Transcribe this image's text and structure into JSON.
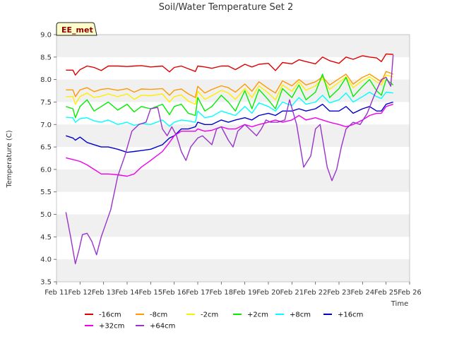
{
  "chart_data": {
    "type": "line",
    "title": "Soil/Water Temperature Set 2",
    "xlabel": "Time",
    "ylabel": "Temperature (C)",
    "badge": "EE_met",
    "ylim": [
      3.5,
      9.0
    ],
    "xlim": [
      11,
      26
    ],
    "grid": "horizontal bands",
    "legend_position": "bottom",
    "yticks": [
      "3.5",
      "4.0",
      "4.5",
      "5.0",
      "5.5",
      "6.0",
      "6.5",
      "7.0",
      "7.5",
      "8.0",
      "8.5",
      "9.0"
    ],
    "ytick_values": [
      3.5,
      4.0,
      4.5,
      5.0,
      5.5,
      6.0,
      6.5,
      7.0,
      7.5,
      8.0,
      8.5,
      9.0
    ],
    "xticks": [
      "Feb 11",
      "Feb 12",
      "Feb 13",
      "Feb 14",
      "Feb 15",
      "Feb 16",
      "Feb 17",
      "Feb 18",
      "Feb 19",
      "Feb 20",
      "Feb 21",
      "Feb 22",
      "Feb 23",
      "Feb 24",
      "Feb 25",
      "Feb 26"
    ],
    "xtick_values": [
      11,
      12,
      13,
      14,
      15,
      16,
      17,
      18,
      19,
      20,
      21,
      22,
      23,
      24,
      25,
      26
    ],
    "series": [
      {
        "name": "-16cm",
        "color": "#e00000",
        "x": [
          11.4,
          11.7,
          11.8,
          12.0,
          12.3,
          12.6,
          12.9,
          13.2,
          13.6,
          14.0,
          14.3,
          14.6,
          15.0,
          15.5,
          15.8,
          16.0,
          16.3,
          16.6,
          16.9,
          17.0,
          17.3,
          17.6,
          18.0,
          18.3,
          18.6,
          19.0,
          19.3,
          19.6,
          20.0,
          20.3,
          20.6,
          21.0,
          21.3,
          21.6,
          22.0,
          22.3,
          22.6,
          23.0,
          23.3,
          23.6,
          24.0,
          24.3,
          24.6,
          24.8,
          25.0,
          25.3
        ],
        "y": [
          8.21,
          8.21,
          8.1,
          8.22,
          8.3,
          8.27,
          8.2,
          8.3,
          8.3,
          8.29,
          8.3,
          8.31,
          8.28,
          8.3,
          8.17,
          8.27,
          8.3,
          8.24,
          8.18,
          8.3,
          8.28,
          8.25,
          8.3,
          8.3,
          8.22,
          8.34,
          8.28,
          8.34,
          8.36,
          8.2,
          8.38,
          8.35,
          8.44,
          8.4,
          8.35,
          8.5,
          8.42,
          8.36,
          8.5,
          8.45,
          8.53,
          8.5,
          8.48,
          8.4,
          8.57,
          8.56
        ]
      },
      {
        "name": "-8cm",
        "color": "#ff9900",
        "x": [
          11.4,
          11.7,
          11.8,
          12.0,
          12.3,
          12.6,
          12.9,
          13.2,
          13.6,
          14.0,
          14.3,
          14.6,
          15.0,
          15.5,
          15.8,
          16.0,
          16.3,
          16.6,
          16.9,
          17.0,
          17.3,
          17.6,
          18.0,
          18.3,
          18.6,
          19.0,
          19.3,
          19.6,
          20.0,
          20.3,
          20.6,
          21.0,
          21.3,
          21.6,
          22.0,
          22.3,
          22.6,
          23.0,
          23.3,
          23.6,
          24.0,
          24.3,
          24.6,
          24.8,
          25.0,
          25.3
        ],
        "y": [
          7.77,
          7.77,
          7.62,
          7.77,
          7.82,
          7.73,
          7.78,
          7.8,
          7.76,
          7.8,
          7.72,
          7.79,
          7.78,
          7.8,
          7.65,
          7.76,
          7.79,
          7.68,
          7.6,
          7.85,
          7.7,
          7.78,
          7.86,
          7.82,
          7.72,
          7.9,
          7.74,
          7.95,
          7.8,
          7.7,
          7.97,
          7.86,
          8.0,
          7.88,
          7.95,
          8.06,
          7.88,
          8.02,
          8.12,
          7.9,
          8.05,
          8.12,
          8.02,
          7.95,
          8.18,
          8.12
        ]
      },
      {
        "name": "-2cm",
        "color": "#ffee00",
        "x": [
          11.4,
          11.7,
          11.8,
          12.0,
          12.3,
          12.6,
          12.9,
          13.2,
          13.6,
          14.0,
          14.3,
          14.6,
          15.0,
          15.5,
          15.8,
          16.0,
          16.3,
          16.6,
          16.9,
          17.0,
          17.3,
          17.6,
          18.0,
          18.3,
          18.6,
          19.0,
          19.3,
          19.6,
          20.0,
          20.3,
          20.6,
          21.0,
          21.3,
          21.6,
          22.0,
          22.3,
          22.6,
          23.0,
          23.3,
          23.6,
          24.0,
          24.3,
          24.6,
          24.8,
          25.0,
          25.3
        ],
        "y": [
          7.62,
          7.62,
          7.45,
          7.62,
          7.7,
          7.6,
          7.63,
          7.68,
          7.62,
          7.68,
          7.56,
          7.65,
          7.64,
          7.68,
          7.5,
          7.62,
          7.66,
          7.52,
          7.45,
          7.74,
          7.56,
          7.64,
          7.76,
          7.7,
          7.56,
          7.8,
          7.6,
          7.86,
          7.7,
          7.55,
          7.88,
          7.74,
          7.95,
          7.76,
          7.86,
          8.02,
          7.78,
          7.94,
          8.06,
          7.82,
          7.98,
          8.06,
          7.95,
          7.88,
          8.1,
          8.06
        ]
      },
      {
        "name": "+2cm",
        "color": "#00ee00",
        "x": [
          11.4,
          11.7,
          11.8,
          12.0,
          12.3,
          12.6,
          12.9,
          13.2,
          13.6,
          14.0,
          14.3,
          14.6,
          15.0,
          15.5,
          15.8,
          16.0,
          16.3,
          16.6,
          16.9,
          17.0,
          17.3,
          17.6,
          18.0,
          18.3,
          18.6,
          19.0,
          19.3,
          19.6,
          20.0,
          20.3,
          20.6,
          21.0,
          21.3,
          21.6,
          22.0,
          22.3,
          22.6,
          23.0,
          23.3,
          23.6,
          24.0,
          24.3,
          24.6,
          24.8,
          25.0,
          25.3
        ],
        "y": [
          7.4,
          7.35,
          7.15,
          7.4,
          7.55,
          7.3,
          7.4,
          7.5,
          7.32,
          7.45,
          7.28,
          7.4,
          7.35,
          7.45,
          7.22,
          7.4,
          7.45,
          7.25,
          7.2,
          7.6,
          7.3,
          7.4,
          7.65,
          7.5,
          7.3,
          7.75,
          7.35,
          7.78,
          7.55,
          7.35,
          7.8,
          7.6,
          7.88,
          7.55,
          7.72,
          8.12,
          7.6,
          7.8,
          8.05,
          7.62,
          7.85,
          8.0,
          7.75,
          7.65,
          8.0,
          7.88
        ]
      },
      {
        "name": "+8cm",
        "color": "#00ffff",
        "x": [
          11.4,
          11.7,
          11.8,
          12.0,
          12.3,
          12.6,
          12.9,
          13.2,
          13.6,
          14.0,
          14.3,
          14.6,
          15.0,
          15.5,
          15.8,
          16.0,
          16.3,
          16.6,
          16.9,
          17.0,
          17.3,
          17.6,
          18.0,
          18.3,
          18.6,
          19.0,
          19.3,
          19.6,
          20.0,
          20.3,
          20.6,
          21.0,
          21.3,
          21.6,
          22.0,
          22.3,
          22.6,
          23.0,
          23.3,
          23.6,
          24.0,
          24.3,
          24.6,
          24.8,
          25.0,
          25.3
        ],
        "y": [
          7.16,
          7.15,
          7.05,
          7.13,
          7.15,
          7.08,
          7.05,
          7.1,
          7.0,
          7.05,
          6.98,
          7.02,
          7.0,
          7.1,
          6.96,
          7.05,
          7.1,
          7.08,
          7.05,
          7.3,
          7.15,
          7.18,
          7.3,
          7.25,
          7.2,
          7.4,
          7.25,
          7.48,
          7.4,
          7.3,
          7.5,
          7.42,
          7.6,
          7.45,
          7.5,
          7.65,
          7.48,
          7.55,
          7.7,
          7.5,
          7.62,
          7.72,
          7.62,
          7.58,
          7.72,
          7.7
        ]
      },
      {
        "name": "+16cm",
        "color": "#0000cc",
        "x": [
          11.4,
          11.7,
          11.8,
          12.0,
          12.3,
          12.6,
          12.9,
          13.2,
          13.6,
          14.0,
          14.3,
          14.6,
          15.0,
          15.5,
          15.8,
          16.0,
          16.3,
          16.6,
          16.9,
          17.0,
          17.3,
          17.6,
          18.0,
          18.3,
          18.6,
          19.0,
          19.3,
          19.6,
          20.0,
          20.3,
          20.6,
          21.0,
          21.3,
          21.6,
          22.0,
          22.3,
          22.6,
          23.0,
          23.3,
          23.6,
          24.0,
          24.3,
          24.6,
          24.8,
          25.0,
          25.3
        ],
        "y": [
          6.75,
          6.7,
          6.65,
          6.72,
          6.6,
          6.55,
          6.5,
          6.5,
          6.45,
          6.38,
          6.4,
          6.42,
          6.45,
          6.55,
          6.7,
          6.75,
          6.9,
          6.9,
          6.95,
          7.05,
          7.0,
          7.0,
          7.1,
          7.05,
          7.1,
          7.15,
          7.1,
          7.2,
          7.25,
          7.2,
          7.3,
          7.3,
          7.35,
          7.3,
          7.35,
          7.45,
          7.3,
          7.3,
          7.4,
          7.25,
          7.35,
          7.4,
          7.3,
          7.3,
          7.45,
          7.5
        ]
      },
      {
        "name": "+32cm",
        "color": "#ee00ee",
        "x": [
          11.4,
          11.7,
          12.0,
          12.3,
          12.6,
          12.9,
          13.2,
          13.6,
          14.0,
          14.3,
          14.6,
          15.0,
          15.5,
          15.8,
          16.0,
          16.3,
          16.6,
          16.9,
          17.0,
          17.3,
          17.6,
          18.0,
          18.3,
          18.6,
          19.0,
          19.3,
          19.6,
          20.0,
          20.3,
          20.6,
          21.0,
          21.3,
          21.6,
          22.0,
          22.3,
          22.6,
          23.0,
          23.3,
          23.6,
          24.0,
          24.3,
          24.6,
          24.8,
          25.0,
          25.3
        ],
        "y": [
          6.26,
          6.22,
          6.18,
          6.1,
          6.0,
          5.9,
          5.9,
          5.88,
          5.85,
          5.9,
          6.05,
          6.2,
          6.4,
          6.6,
          6.75,
          6.85,
          6.85,
          6.85,
          6.9,
          6.85,
          6.87,
          6.95,
          6.9,
          6.9,
          7.0,
          6.95,
          7.0,
          7.05,
          7.1,
          7.05,
          7.1,
          7.2,
          7.1,
          7.15,
          7.1,
          7.05,
          7.0,
          6.95,
          7.0,
          7.1,
          7.2,
          7.25,
          7.25,
          7.4,
          7.45
        ]
      },
      {
        "name": "+64cm",
        "color": "#9933cc",
        "x": [
          11.4,
          11.6,
          11.8,
          11.95,
          12.1,
          12.3,
          12.5,
          12.7,
          12.9,
          13.1,
          13.3,
          13.6,
          13.9,
          14.2,
          14.5,
          14.8,
          15.0,
          15.3,
          15.5,
          15.7,
          15.9,
          16.1,
          16.3,
          16.5,
          16.7,
          17.0,
          17.2,
          17.4,
          17.6,
          17.8,
          18.0,
          18.3,
          18.5,
          18.7,
          19.0,
          19.2,
          19.5,
          19.7,
          19.9,
          20.1,
          20.4,
          20.7,
          20.9,
          21.2,
          21.5,
          21.8,
          22.0,
          22.2,
          22.5,
          22.7,
          22.9,
          23.1,
          23.3,
          23.6,
          23.9,
          24.2,
          24.5,
          24.8,
          25.0,
          25.2,
          25.3
        ],
        "y": [
          5.05,
          4.5,
          3.9,
          4.2,
          4.55,
          4.58,
          4.4,
          4.1,
          4.5,
          4.8,
          5.1,
          5.85,
          6.3,
          6.85,
          7.0,
          7.05,
          7.35,
          7.38,
          6.9,
          6.75,
          6.95,
          6.75,
          6.4,
          6.2,
          6.5,
          6.7,
          6.75,
          6.65,
          6.55,
          6.9,
          6.95,
          6.65,
          6.5,
          6.85,
          7.0,
          6.9,
          6.75,
          6.9,
          7.1,
          7.05,
          7.05,
          7.1,
          7.55,
          7.0,
          6.05,
          6.3,
          6.9,
          7.0,
          6.05,
          5.75,
          6.0,
          6.5,
          6.9,
          7.05,
          7.0,
          7.25,
          7.65,
          8.0,
          8.05,
          7.85,
          8.55
        ]
      }
    ]
  }
}
